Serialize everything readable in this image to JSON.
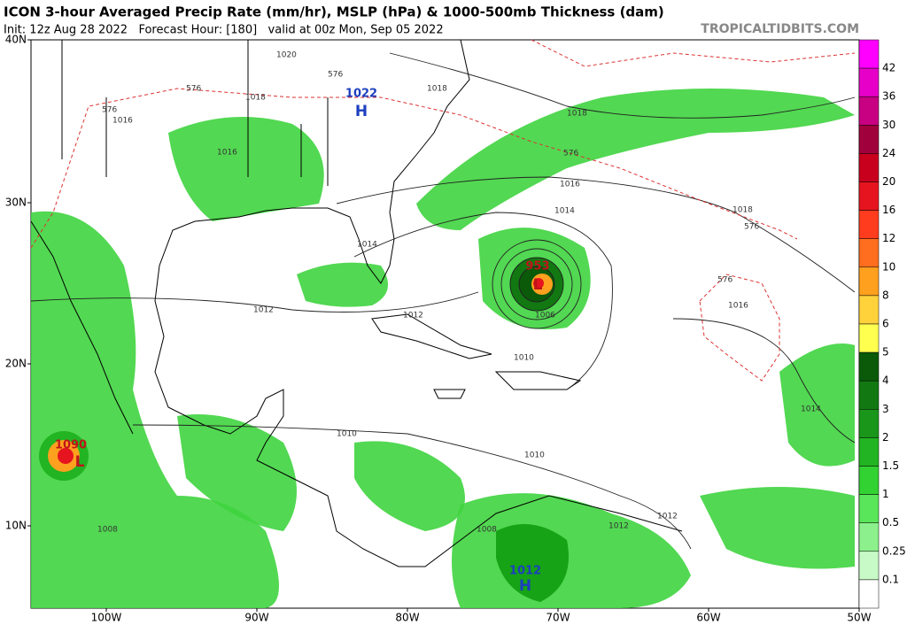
{
  "header": {
    "title": "ICON 3-hour Averaged Precip Rate (mm/hr), MSLP (hPa) & 1000-500mb Thickness (dam)",
    "subtitle": "Init: 12z Aug 28 2022   Forecast Hour: [180]   valid at 00z Mon, Sep 05 2022",
    "site": "TROPICALTIDBITS.COM"
  },
  "map": {
    "lat_labels": [
      "40N",
      "30N",
      "20N",
      "10N"
    ],
    "lon_labels": [
      "100W",
      "90W",
      "80W",
      "70W",
      "60W",
      "50W"
    ],
    "centers": [
      {
        "letter": "H",
        "pressure": "1022"
      },
      {
        "letter": "L",
        "pressure": "953"
      },
      {
        "letter": "L",
        "pressure": "1090"
      },
      {
        "letter": "H",
        "pressure": "1012"
      }
    ],
    "isobar_labels": [
      "1020",
      "1018",
      "1016",
      "1018",
      "1018",
      "1016",
      "1016",
      "1014",
      "1014",
      "1012",
      "1012",
      "1010",
      "1010",
      "1010",
      "1008",
      "1006",
      "1014",
      "1016",
      "1018",
      "1012",
      "1008",
      "1012"
    ],
    "thickness_labels": [
      "576",
      "576",
      "576",
      "576",
      "576",
      "576"
    ]
  },
  "colorbar": {
    "labels": [
      "42",
      "36",
      "30",
      "24",
      "20",
      "16",
      "12",
      "10",
      "8",
      "6",
      "5",
      "4",
      "3",
      "2",
      "1.5",
      "1",
      "0.5",
      "0.25",
      "0.1"
    ],
    "colors": [
      "#ff00ff",
      "#e600c8",
      "#c80082",
      "#a0003c",
      "#c8001e",
      "#e6141e",
      "#ff3c1e",
      "#ff6e1e",
      "#ffa01e",
      "#ffd23c",
      "#ffff50",
      "#0a5a0a",
      "#127812",
      "#1a961a",
      "#22b422",
      "#32d232",
      "#5ae65a",
      "#8cf08c",
      "#c8fac8",
      "#ffffff"
    ]
  }
}
